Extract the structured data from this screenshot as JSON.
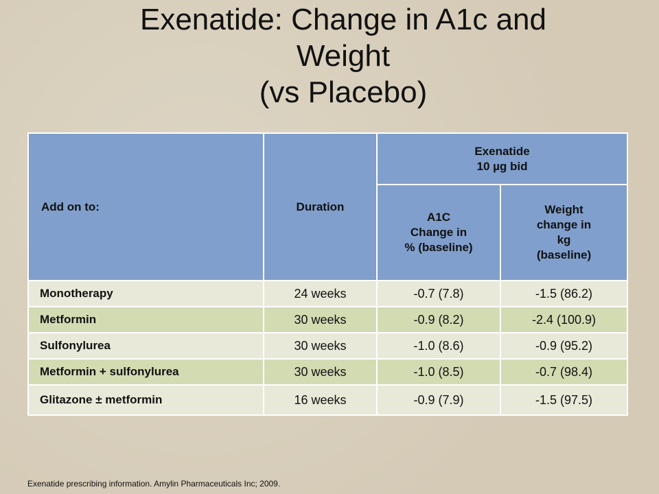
{
  "title": {
    "lines": [
      "Exenatide: Change in A1c and",
      "Weight",
      "(vs Placebo)"
    ]
  },
  "table": {
    "header": {
      "add_on": "Add on to:",
      "duration": "Duration",
      "group": [
        "Exenatide",
        "10 µg bid"
      ],
      "a1c": [
        "A1C",
        "Change in",
        "% (baseline)"
      ],
      "weight": [
        "Weight",
        "change in",
        "kg",
        "(baseline)"
      ]
    },
    "rows": [
      [
        "Monotherapy",
        "24 weeks",
        "-0.7 (7.8)",
        "-1.5 (86.2)"
      ],
      [
        "Metformin",
        "30 weeks",
        "-0.9 (8.2)",
        "-2.4 (100.9)"
      ],
      [
        "Sulfonylurea",
        "30 weeks",
        "-1.0 (8.6)",
        "-0.9 (95.2)"
      ],
      [
        "Metformin + sulfonylurea",
        "30 weeks",
        "-1.0 (8.5)",
        "-0.7 (98.4)"
      ],
      [
        "Glitazone ± metformin",
        "16 weeks",
        "-0.9 (7.9)",
        "-1.5 (97.5)"
      ]
    ]
  },
  "footnote": "Exenatide prescribing information.  Amylin Pharmaceuticals Inc; 2009."
}
